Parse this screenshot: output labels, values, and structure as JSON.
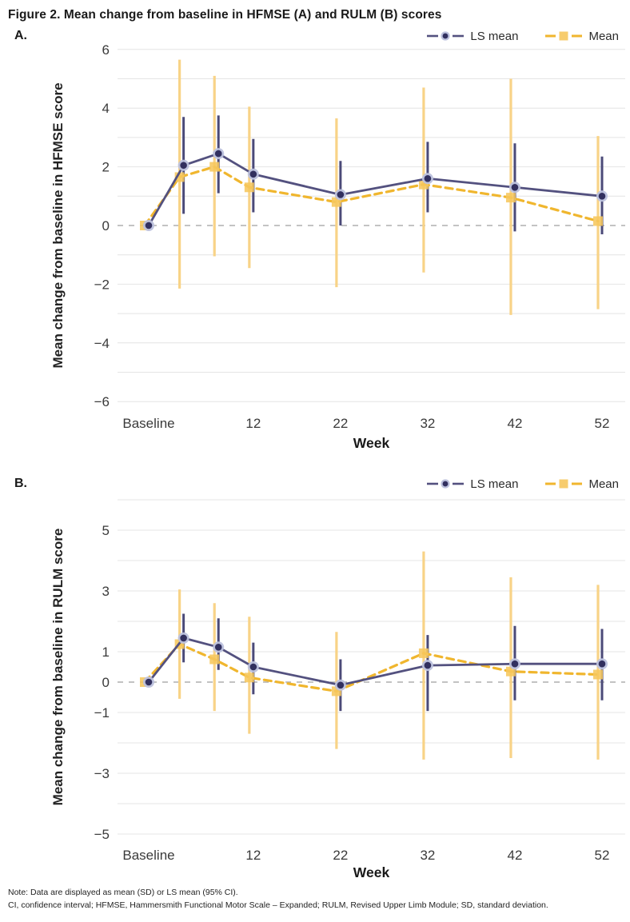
{
  "title": "Figure 2. Mean change from baseline in HFMSE (A) and RULM (B) scores",
  "legend": {
    "ls_mean_label": "LS mean",
    "mean_label": "Mean"
  },
  "panels": [
    {
      "label": "A."
    },
    {
      "label": "B."
    }
  ],
  "footnotes": {
    "line1": "Note: Data are displayed as mean (SD) or LS mean (95% CI).",
    "line2": "CI, confidence interval; HFMSE, Hammersmith Functional Motor Scale – Expanded; RULM, Revised Upper Limb Module; SD, standard deviation."
  },
  "colors": {
    "ls_mean_line": "#53517F",
    "ls_mean_errorbar": "#4B4A78",
    "ls_mean_marker_core": "#32305F",
    "ls_mean_marker_halo": "#BCC1DD",
    "mean_line": "#F0B62E",
    "mean_errorbar": "#F8D387",
    "mean_marker": "#F6C75D",
    "gridline": "#E4E4E4",
    "zero_line": "#AFAFAF",
    "axis_text": "#3A3A3A"
  },
  "chart_data": [
    {
      "type": "line",
      "panel": "A",
      "ylabel": "Mean change from baseline in HFMSE score",
      "xlabel": "Week",
      "x_weeks": [
        0,
        4,
        8,
        12,
        22,
        32,
        42,
        52
      ],
      "x_tick_weeks": [
        0,
        12,
        22,
        32,
        42,
        52
      ],
      "x_tick_labels": [
        "Baseline",
        "12",
        "22",
        "32",
        "42",
        "52"
      ],
      "ylim": [
        -6,
        6
      ],
      "grid_step": 1,
      "y_tick_values": [
        6,
        4,
        2,
        0,
        -2,
        -4,
        -6
      ],
      "y_tick_labels": [
        "6",
        "4",
        "2",
        "0",
        "−2",
        "−4",
        "−6"
      ],
      "legend_position": "top-right",
      "series": [
        {
          "name": "LS mean",
          "marker": "circle",
          "error_type": "95% CI",
          "values": [
            0,
            2.05,
            2.45,
            1.75,
            1.05,
            1.6,
            1.3,
            1.0
          ],
          "err_low": [
            null,
            0.4,
            1.1,
            0.45,
            0.0,
            0.45,
            -0.2,
            -0.3
          ],
          "err_high": [
            null,
            3.7,
            3.75,
            2.95,
            2.2,
            2.85,
            2.8,
            2.35
          ]
        },
        {
          "name": "Mean",
          "marker": "square",
          "error_type": "SD",
          "values": [
            0,
            1.65,
            2.0,
            1.3,
            0.8,
            1.4,
            0.95,
            0.15
          ],
          "err_low": [
            null,
            -2.15,
            -1.05,
            -1.45,
            -2.1,
            -1.6,
            -3.05,
            -2.85
          ],
          "err_high": [
            null,
            5.65,
            5.1,
            4.05,
            3.65,
            4.7,
            5.0,
            3.05
          ]
        }
      ]
    },
    {
      "type": "line",
      "panel": "B",
      "ylabel": "Mean change from baseline in RULM score",
      "xlabel": "Week",
      "x_weeks": [
        0,
        4,
        8,
        12,
        22,
        32,
        42,
        52
      ],
      "x_tick_weeks": [
        0,
        12,
        22,
        32,
        42,
        52
      ],
      "x_tick_labels": [
        "Baseline",
        "12",
        "22",
        "32",
        "42",
        "52"
      ],
      "ylim": [
        -5,
        6
      ],
      "grid_step": 1,
      "y_tick_values": [
        5,
        3,
        1,
        0,
        -1,
        -3,
        -5
      ],
      "y_tick_labels": [
        "5",
        "3",
        "1",
        "0",
        "−1",
        "−3",
        "−5"
      ],
      "legend_position": "top-right",
      "series": [
        {
          "name": "LS mean",
          "marker": "circle",
          "error_type": "95% CI",
          "values": [
            0,
            1.45,
            1.15,
            0.5,
            -0.1,
            0.55,
            0.6,
            0.6
          ],
          "err_low": [
            null,
            0.65,
            0.4,
            -0.4,
            -0.95,
            -0.95,
            -0.6,
            -0.6
          ],
          "err_high": [
            null,
            2.25,
            2.1,
            1.3,
            0.75,
            1.55,
            1.85,
            1.75
          ]
        },
        {
          "name": "Mean",
          "marker": "square",
          "error_type": "SD",
          "values": [
            0,
            1.25,
            0.75,
            0.15,
            -0.3,
            0.95,
            0.35,
            0.25
          ],
          "err_low": [
            null,
            -0.55,
            -0.95,
            -1.7,
            -2.2,
            -2.55,
            -2.5,
            -2.55
          ],
          "err_high": [
            null,
            3.05,
            2.6,
            2.15,
            1.65,
            4.3,
            3.45,
            3.2
          ]
        }
      ]
    }
  ]
}
